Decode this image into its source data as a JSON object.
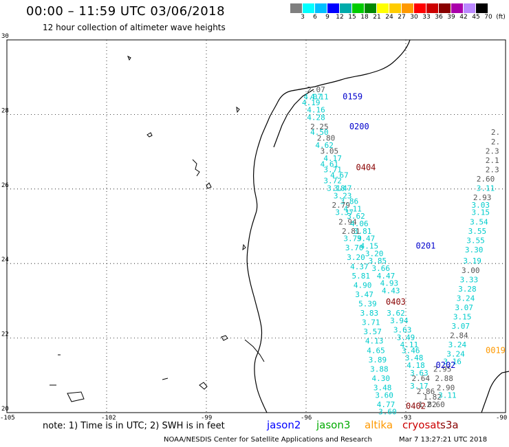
{
  "title": "00:00 – 11:59 UTC 03/06/2018",
  "subtitle": "12 hour collection of altimeter wave heights",
  "legend": {
    "colors": [
      "#7f7f7f",
      "#00ffff",
      "#00bfff",
      "#0000ff",
      "#00aaaa",
      "#00cc00",
      "#008800",
      "#ffff00",
      "#ffcc00",
      "#ff9900",
      "#ff0000",
      "#cc0000",
      "#880000",
      "#aa00aa",
      "#bb88ff",
      "#000000"
    ],
    "labels": [
      "3",
      "6",
      "9",
      "12",
      "15",
      "18",
      "21",
      "24",
      "27",
      "30",
      "33",
      "36",
      "39",
      "42",
      "45",
      "70",
      "(ft)"
    ]
  },
  "axes": {
    "lat_labels": [
      "30",
      "28",
      "26",
      "24",
      "22",
      "20"
    ],
    "lon_labels": [
      "-105",
      "-102",
      "-99",
      "-96",
      "-93",
      "-90"
    ]
  },
  "note": "note: 1) Time is in UTC; 2) SWH is in feet",
  "satellites": [
    {
      "name": "jason2",
      "color": "#0000ff"
    },
    {
      "name": "jason3",
      "color": "#00aa00"
    },
    {
      "name": "altika",
      "color": "#ff9900"
    },
    {
      "name": "cryosat",
      "color": "#cc0000"
    },
    {
      "name": "s3a",
      "color": "#880000"
    }
  ],
  "footer": "NOAA/NESDIS Center for Satellite Applications and Research",
  "footer_time": "Mar  7 13:27:21 UTC 2018",
  "time_labels": [
    {
      "text": "0159",
      "color": "#0000cc",
      "lon": -94.9,
      "lat": 28.4
    },
    {
      "text": "0200",
      "color": "#0000cc",
      "lon": -94.7,
      "lat": 27.6
    },
    {
      "text": "0404",
      "color": "#880000",
      "lon": -94.5,
      "lat": 26.5
    },
    {
      "text": "0201",
      "color": "#0000cc",
      "lon": -92.7,
      "lat": 24.4
    },
    {
      "text": "0403",
      "color": "#880000",
      "lon": -93.6,
      "lat": 22.9
    },
    {
      "text": "0202",
      "color": "#0000cc",
      "lon": -92.1,
      "lat": 21.2
    },
    {
      "text": "0019",
      "color": "#ff9900",
      "lon": -90.6,
      "lat": 21.6
    },
    {
      "text": "0402",
      "color": "#880000",
      "lon": -93.0,
      "lat": 20.1
    }
  ],
  "tracks": [
    {
      "name": "track-a",
      "points": [
        {
          "v": "2.07",
          "c": "#555555",
          "lon": -95.7,
          "lat": 28.6
        },
        {
          "v": "4.07",
          "c": "#00cccc",
          "lon": -95.8,
          "lat": 28.4
        },
        {
          "v": "4.11",
          "c": "#00cccc",
          "lon": -95.6,
          "lat": 28.4
        },
        {
          "v": "4.19",
          "c": "#00cccc",
          "lon": -95.85,
          "lat": 28.25
        },
        {
          "v": "4.16",
          "c": "#00cccc",
          "lon": -95.7,
          "lat": 28.05
        },
        {
          "v": "4.28",
          "c": "#00cccc",
          "lon": -95.7,
          "lat": 27.85
        },
        {
          "v": "2.25",
          "c": "#555555",
          "lon": -95.6,
          "lat": 27.6
        },
        {
          "v": "4.50",
          "c": "#00cccc",
          "lon": -95.6,
          "lat": 27.45
        },
        {
          "v": "2.80",
          "c": "#555555",
          "lon": -95.4,
          "lat": 27.3
        },
        {
          "v": "4.62",
          "c": "#00cccc",
          "lon": -95.45,
          "lat": 27.1
        },
        {
          "v": "3.05",
          "c": "#555555",
          "lon": -95.3,
          "lat": 26.95
        },
        {
          "v": "4.17",
          "c": "#00cccc",
          "lon": -95.2,
          "lat": 26.75
        },
        {
          "v": "4.61",
          "c": "#00cccc",
          "lon": -95.3,
          "lat": 26.6
        },
        {
          "v": "3.71",
          "c": "#00cccc",
          "lon": -95.2,
          "lat": 26.45
        },
        {
          "v": "4.67",
          "c": "#00cccc",
          "lon": -95.0,
          "lat": 26.3
        },
        {
          "v": "3.72",
          "c": "#00cccc",
          "lon": -95.2,
          "lat": 26.15
        },
        {
          "v": "3.18",
          "c": "#00cccc",
          "lon": -95.1,
          "lat": 25.95
        },
        {
          "v": "3.47",
          "c": "#00cccc",
          "lon": -94.9,
          "lat": 25.95
        },
        {
          "v": "3.23",
          "c": "#00cccc",
          "lon": -94.9,
          "lat": 25.75
        },
        {
          "v": "3.86",
          "c": "#00cccc",
          "lon": -94.7,
          "lat": 25.6
        },
        {
          "v": "2.79",
          "c": "#555555",
          "lon": -94.95,
          "lat": 25.5
        },
        {
          "v": "4.11",
          "c": "#00cccc",
          "lon": -94.6,
          "lat": 25.4
        },
        {
          "v": "3.37",
          "c": "#00cccc",
          "lon": -94.85,
          "lat": 25.3
        },
        {
          "v": "3.62",
          "c": "#00cccc",
          "lon": -94.5,
          "lat": 25.2
        },
        {
          "v": "2.94",
          "c": "#555555",
          "lon": -94.75,
          "lat": 25.05
        },
        {
          "v": "4.06",
          "c": "#00cccc",
          "lon": -94.4,
          "lat": 25.0
        },
        {
          "v": "2.81",
          "c": "#555555",
          "lon": -94.65,
          "lat": 24.8
        },
        {
          "v": "3.81",
          "c": "#00cccc",
          "lon": -94.3,
          "lat": 24.8
        },
        {
          "v": "3.79",
          "c": "#00cccc",
          "lon": -94.6,
          "lat": 24.6
        },
        {
          "v": "3.47",
          "c": "#00cccc",
          "lon": -94.2,
          "lat": 24.6
        },
        {
          "v": "3.70",
          "c": "#00cccc",
          "lon": -94.55,
          "lat": 24.35
        },
        {
          "v": "4.15",
          "c": "#00cccc",
          "lon": -94.1,
          "lat": 24.4
        },
        {
          "v": "3.20",
          "c": "#00cccc",
          "lon": -94.5,
          "lat": 24.1
        },
        {
          "v": "3.20",
          "c": "#00cccc",
          "lon": -93.95,
          "lat": 24.2
        },
        {
          "v": "3.85",
          "c": "#00cccc",
          "lon": -93.85,
          "lat": 24.0
        },
        {
          "v": "4.37",
          "c": "#00cccc",
          "lon": -94.4,
          "lat": 23.85
        },
        {
          "v": "3.66",
          "c": "#00cccc",
          "lon": -93.75,
          "lat": 23.8
        },
        {
          "v": "5.81",
          "c": "#00cccc",
          "lon": -94.35,
          "lat": 23.6
        },
        {
          "v": "4.47",
          "c": "#00cccc",
          "lon": -93.6,
          "lat": 23.6
        },
        {
          "v": "4.90",
          "c": "#00cccc",
          "lon": -94.3,
          "lat": 23.35
        },
        {
          "v": "4.93",
          "c": "#00cccc",
          "lon": -93.5,
          "lat": 23.4
        },
        {
          "v": "3.47",
          "c": "#00cccc",
          "lon": -94.25,
          "lat": 23.1
        },
        {
          "v": "4.43",
          "c": "#00cccc",
          "lon": -93.45,
          "lat": 23.2
        },
        {
          "v": "5.39",
          "c": "#00cccc",
          "lon": -94.15,
          "lat": 22.85
        },
        {
          "v": "3.83",
          "c": "#00cccc",
          "lon": -94.1,
          "lat": 22.6
        },
        {
          "v": "3.62",
          "c": "#00cccc",
          "lon": -93.3,
          "lat": 22.6
        },
        {
          "v": "3.94",
          "c": "#00cccc",
          "lon": -93.2,
          "lat": 22.4
        },
        {
          "v": "3.71",
          "c": "#00cccc",
          "lon": -94.05,
          "lat": 22.35
        },
        {
          "v": "3.63",
          "c": "#00cccc",
          "lon": -93.1,
          "lat": 22.15
        },
        {
          "v": "3.57",
          "c": "#00cccc",
          "lon": -94.0,
          "lat": 22.1
        },
        {
          "v": "3.49",
          "c": "#00cccc",
          "lon": -93.0,
          "lat": 21.95
        },
        {
          "v": "4.13",
          "c": "#00cccc",
          "lon": -93.95,
          "lat": 21.85
        },
        {
          "v": "4.11",
          "c": "#00cccc",
          "lon": -92.9,
          "lat": 21.75
        },
        {
          "v": "4.65",
          "c": "#00cccc",
          "lon": -93.9,
          "lat": 21.6
        },
        {
          "v": "3.46",
          "c": "#00cccc",
          "lon": -92.85,
          "lat": 21.6
        },
        {
          "v": "3.89",
          "c": "#00cccc",
          "lon": -93.85,
          "lat": 21.35
        },
        {
          "v": "3.48",
          "c": "#00cccc",
          "lon": -92.75,
          "lat": 21.4
        },
        {
          "v": "4.18",
          "c": "#00cccc",
          "lon": -92.7,
          "lat": 21.2
        },
        {
          "v": "3.88",
          "c": "#00cccc",
          "lon": -93.8,
          "lat": 21.1
        },
        {
          "v": "3.63",
          "c": "#00cccc",
          "lon": -92.6,
          "lat": 21.0
        },
        {
          "v": "4.30",
          "c": "#00cccc",
          "lon": -93.75,
          "lat": 20.85
        },
        {
          "v": "2.64",
          "c": "#555555",
          "lon": -92.55,
          "lat": 20.85
        },
        {
          "v": "3.48",
          "c": "#00cccc",
          "lon": -93.7,
          "lat": 20.6
        },
        {
          "v": "3.17",
          "c": "#00cccc",
          "lon": -92.6,
          "lat": 20.65
        },
        {
          "v": "2.86",
          "c": "#555555",
          "lon": -92.4,
          "lat": 20.5
        },
        {
          "v": "3.60",
          "c": "#00cccc",
          "lon": -93.65,
          "lat": 20.4
        },
        {
          "v": "1.82",
          "c": "#555555",
          "lon": -92.2,
          "lat": 20.35
        },
        {
          "v": "4.77",
          "c": "#00cccc",
          "lon": -93.6,
          "lat": 20.15
        },
        {
          "v": "1.82",
          "c": "#555555",
          "lon": -92.35,
          "lat": 20.15
        },
        {
          "v": "2.60",
          "c": "#555555",
          "lon": -92.1,
          "lat": 20.15
        },
        {
          "v": "3.60",
          "c": "#00cccc",
          "lon": -93.55,
          "lat": 19.95
        }
      ]
    },
    {
      "name": "track-b",
      "points": [
        {
          "v": "2.95",
          "c": "#555555",
          "lon": -91.9,
          "lat": 21.1
        },
        {
          "v": "2.88",
          "c": "#555555",
          "lon": -91.85,
          "lat": 20.85
        },
        {
          "v": "2.90",
          "c": "#555555",
          "lon": -91.8,
          "lat": 20.6
        },
        {
          "v": "3.11",
          "c": "#00cccc",
          "lon": -91.75,
          "lat": 20.4
        },
        {
          "v": "3.16",
          "c": "#00cccc",
          "lon": -91.6,
          "lat": 21.3
        },
        {
          "v": "3.24",
          "c": "#00cccc",
          "lon": -91.5,
          "lat": 21.5
        },
        {
          "v": "3.24",
          "c": "#00cccc",
          "lon": -91.45,
          "lat": 21.75
        },
        {
          "v": "2.84",
          "c": "#555555",
          "lon": -91.4,
          "lat": 22.0
        },
        {
          "v": "3.07",
          "c": "#00cccc",
          "lon": -91.35,
          "lat": 22.25
        },
        {
          "v": "3.15",
          "c": "#00cccc",
          "lon": -91.3,
          "lat": 22.5
        },
        {
          "v": "3.07",
          "c": "#00cccc",
          "lon": -91.25,
          "lat": 22.75
        },
        {
          "v": "3.24",
          "c": "#00cccc",
          "lon": -91.2,
          "lat": 23.0
        },
        {
          "v": "3.28",
          "c": "#00cccc",
          "lon": -91.15,
          "lat": 23.25
        },
        {
          "v": "3.33",
          "c": "#00cccc",
          "lon": -91.1,
          "lat": 23.5
        },
        {
          "v": "3.00",
          "c": "#555555",
          "lon": -91.05,
          "lat": 23.75
        },
        {
          "v": "3.19",
          "c": "#00cccc",
          "lon": -91.0,
          "lat": 24.0
        },
        {
          "v": "3.30",
          "c": "#00cccc",
          "lon": -90.95,
          "lat": 24.3
        },
        {
          "v": "3.55",
          "c": "#00cccc",
          "lon": -90.9,
          "lat": 24.55
        },
        {
          "v": "3.55",
          "c": "#00cccc",
          "lon": -90.85,
          "lat": 24.8
        },
        {
          "v": "3.54",
          "c": "#00cccc",
          "lon": -90.8,
          "lat": 25.05
        },
        {
          "v": "3.15",
          "c": "#00cccc",
          "lon": -90.75,
          "lat": 25.3
        },
        {
          "v": "3.03",
          "c": "#00cccc",
          "lon": -90.75,
          "lat": 25.5
        },
        {
          "v": "2.93",
          "c": "#555555",
          "lon": -90.7,
          "lat": 25.7
        },
        {
          "v": "3.11",
          "c": "#00cccc",
          "lon": -90.6,
          "lat": 25.95
        },
        {
          "v": "2.60",
          "c": "#555555",
          "lon": -90.6,
          "lat": 26.2
        },
        {
          "v": "2.3",
          "c": "#555555",
          "lon": -90.4,
          "lat": 26.45
        },
        {
          "v": "2.1",
          "c": "#555555",
          "lon": -90.4,
          "lat": 26.7
        },
        {
          "v": "2.3",
          "c": "#555555",
          "lon": -90.4,
          "lat": 26.95
        },
        {
          "v": "2.",
          "c": "#555555",
          "lon": -90.3,
          "lat": 27.2
        },
        {
          "v": "2.",
          "c": "#555555",
          "lon": -90.3,
          "lat": 27.45
        }
      ]
    }
  ]
}
